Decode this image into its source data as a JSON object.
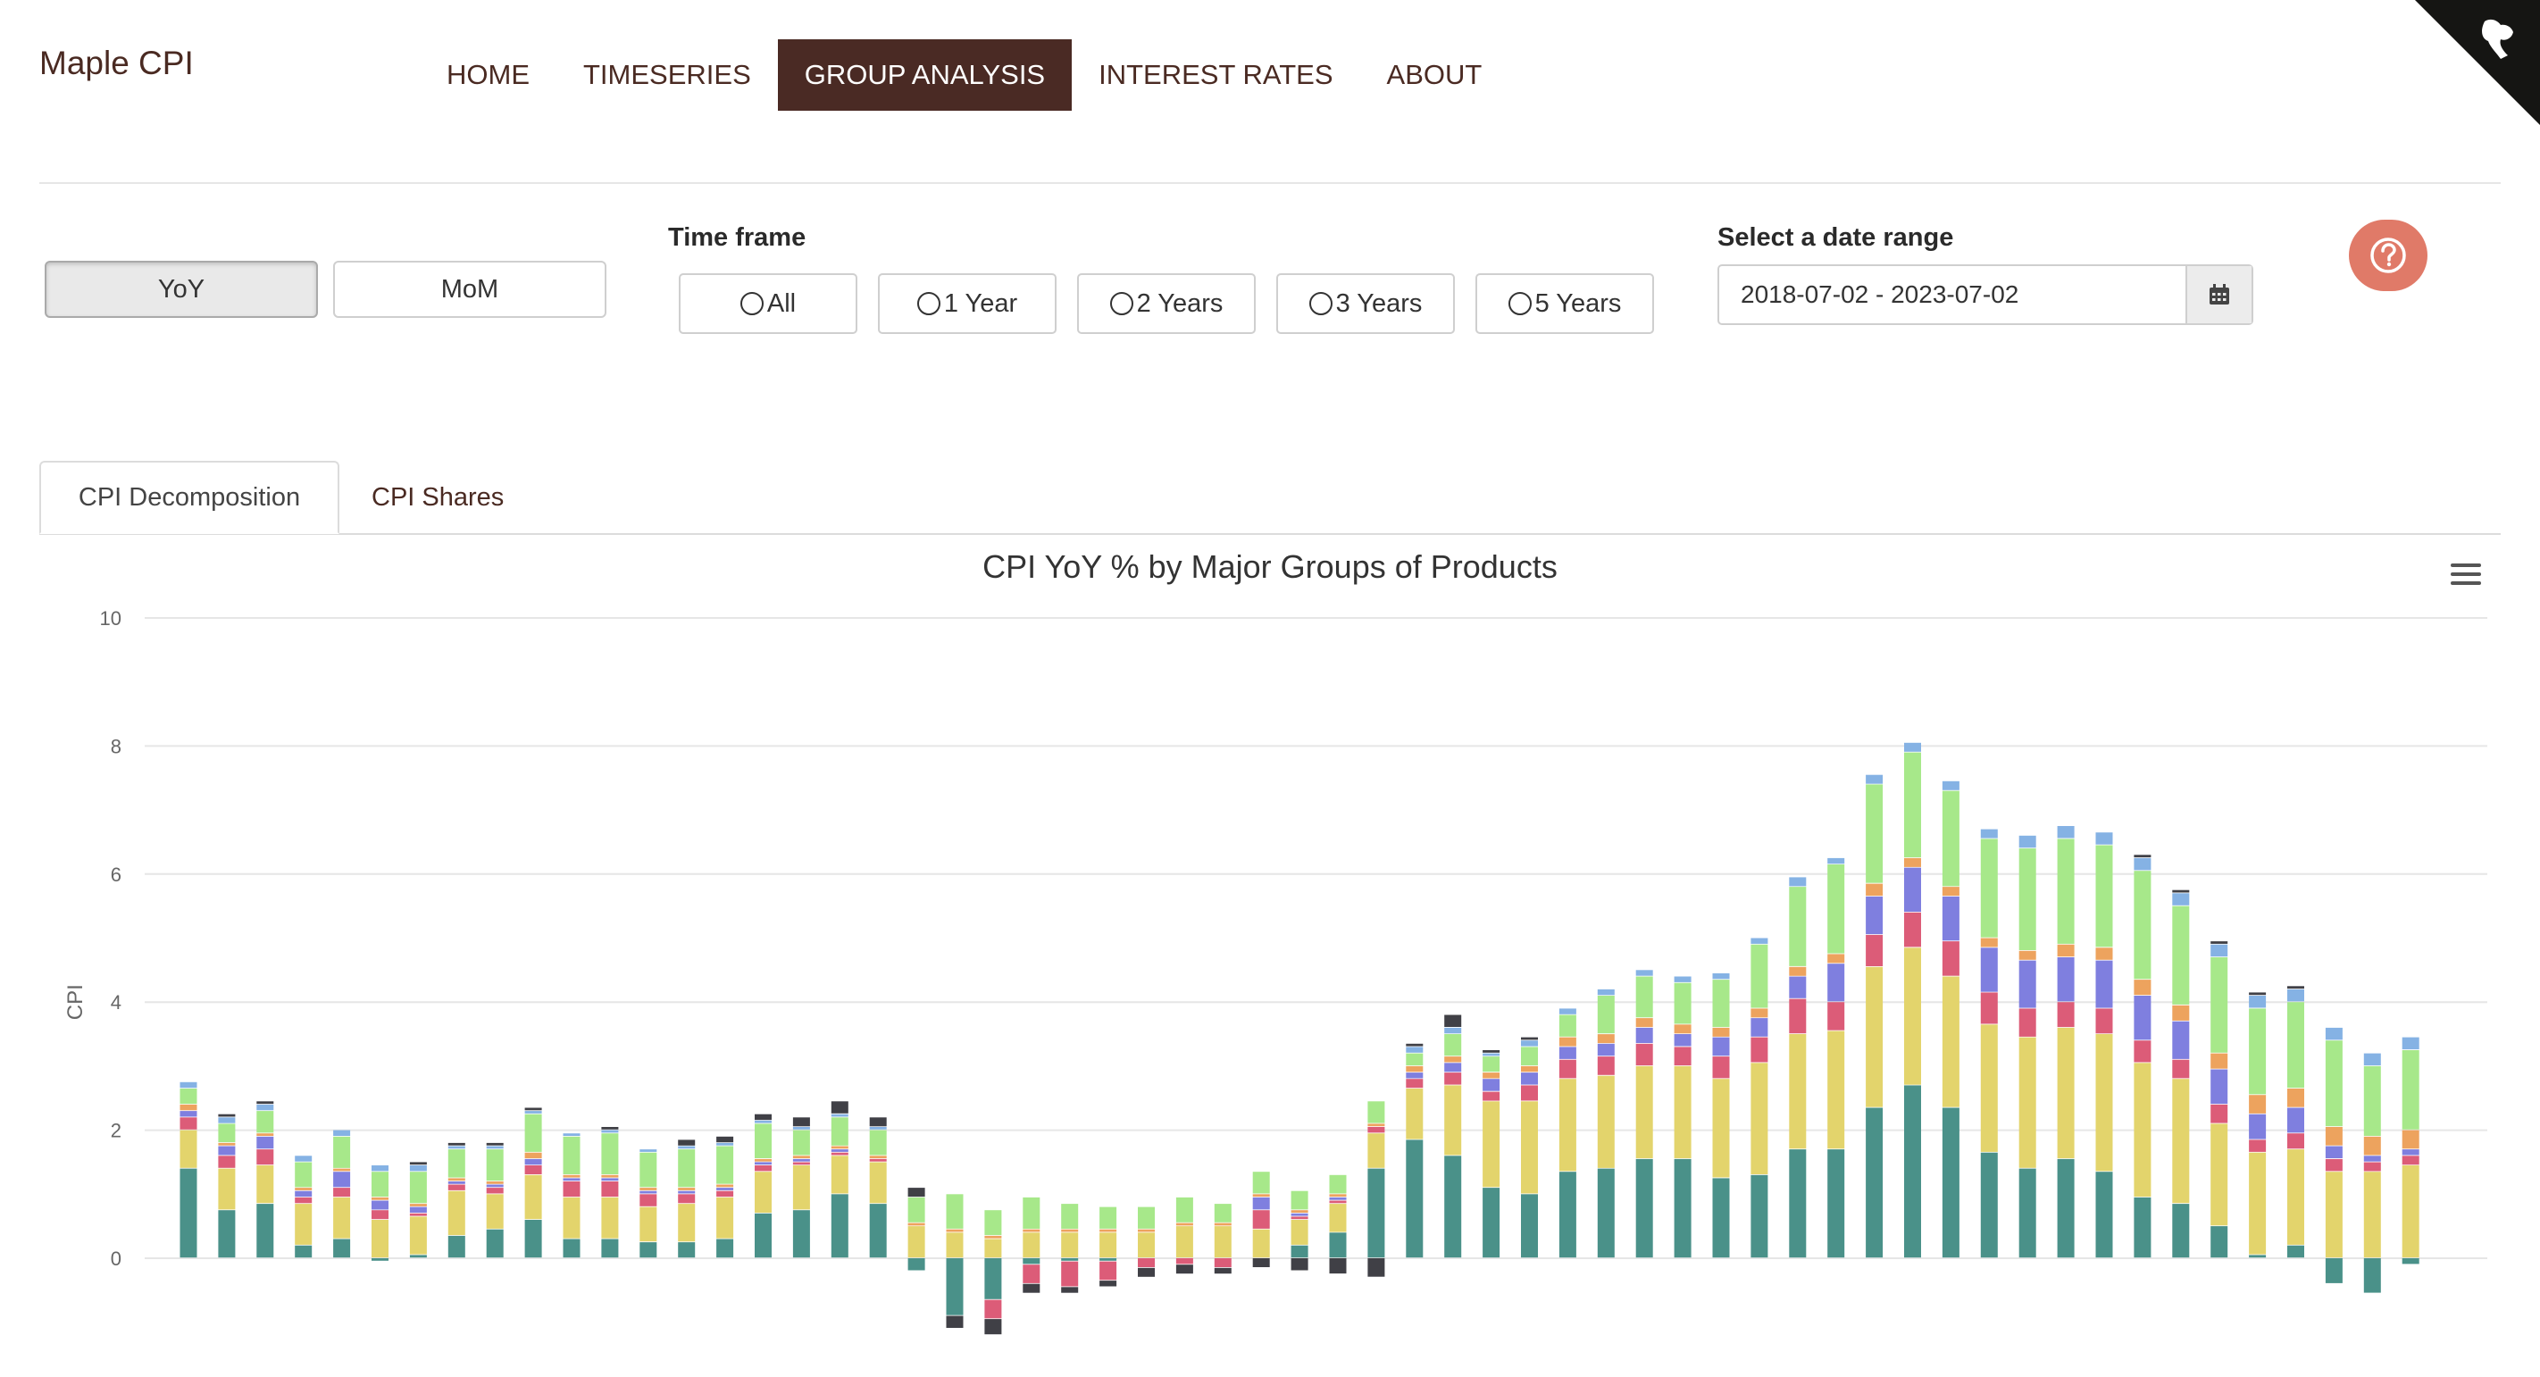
{
  "app": {
    "title": "Maple CPI"
  },
  "nav": {
    "items": [
      {
        "label": "HOME",
        "active": false
      },
      {
        "label": "TIMESERIES",
        "active": false
      },
      {
        "label": "GROUP ANALYSIS",
        "active": true
      },
      {
        "label": "INTEREST RATES",
        "active": false
      },
      {
        "label": "ABOUT",
        "active": false
      }
    ]
  },
  "mode": {
    "yoy_label": "YoY",
    "mom_label": "MoM",
    "selected": "YoY"
  },
  "timeframe": {
    "label": "Time frame",
    "options": [
      "All",
      "1 Year",
      "2 Years",
      "3 Years",
      "5 Years"
    ]
  },
  "daterange": {
    "label": "Select a date range",
    "value": "2018-07-02 - 2023-07-02"
  },
  "tabs": {
    "decomposition": "CPI Decomposition",
    "shares": "CPI Shares"
  },
  "colors": {
    "teal": "#4a9189",
    "yellow": "#e3d46c",
    "red": "#dc5c78",
    "purple": "#7f7fdf",
    "orange": "#eda35e",
    "green": "#a7e88a",
    "blue": "#85b2e4",
    "dark": "#404046",
    "help": "#e07a68",
    "nav_active": "#4a2a24"
  },
  "chart_data": {
    "type": "bar",
    "stacked": true,
    "title": "CPI YoY % by Major Groups of Products",
    "ylabel": "CPI",
    "xlabel": "",
    "ylim": [
      -1.2,
      10
    ],
    "yticks": [
      0,
      2,
      4,
      6,
      8,
      10
    ],
    "grid": true,
    "legend": "none",
    "series": [
      {
        "color": "#4a9189",
        "values": [
          1.4,
          0.75,
          0.85,
          0.2,
          0.3,
          -0.05,
          0.05,
          0.35,
          0.45,
          0.6,
          0.3,
          0.3,
          0.25,
          0.25,
          0.3,
          0.7,
          0.75,
          1.0,
          0.85,
          -0.2,
          -0.9,
          -0.65,
          -0.1,
          -0.05,
          -0.05,
          0,
          0,
          0,
          0,
          0.2,
          0.4,
          1.4,
          1.85,
          1.6,
          1.1,
          1.0,
          1.35,
          1.4,
          1.55,
          1.55,
          1.25,
          1.3,
          1.7,
          1.7,
          2.35,
          2.7,
          2.35,
          1.65,
          1.4,
          1.55,
          1.35,
          0.95,
          0.85,
          0.5,
          0.05,
          0.2,
          -0.4,
          -0.55,
          -0.1
        ]
      },
      {
        "color": "#e3d46c",
        "values": [
          0.6,
          0.65,
          0.6,
          0.65,
          0.65,
          0.6,
          0.6,
          0.7,
          0.55,
          0.7,
          0.65,
          0.65,
          0.55,
          0.6,
          0.65,
          0.65,
          0.7,
          0.6,
          0.65,
          0.5,
          0.4,
          0.3,
          0.4,
          0.4,
          0.4,
          0.4,
          0.5,
          0.5,
          0.45,
          0.4,
          0.45,
          0.55,
          0.8,
          1.1,
          1.35,
          1.45,
          1.45,
          1.45,
          1.45,
          1.45,
          1.55,
          1.75,
          1.8,
          1.85,
          2.2,
          2.15,
          2.05,
          2.0,
          2.05,
          2.05,
          2.15,
          2.1,
          1.95,
          1.6,
          1.6,
          1.5,
          1.35,
          1.35,
          1.45
        ]
      },
      {
        "color": "#dc5c78",
        "values": [
          0.2,
          0.2,
          0.25,
          0.1,
          0.15,
          0.15,
          0.05,
          0.1,
          0.1,
          0.15,
          0.25,
          0.25,
          0.2,
          0.15,
          0.1,
          0.1,
          0.05,
          0.05,
          0.05,
          0,
          0,
          -0.3,
          -0.3,
          -0.4,
          -0.3,
          -0.15,
          -0.1,
          -0.15,
          0.3,
          0.05,
          0.05,
          0.1,
          0.15,
          0.2,
          0.15,
          0.25,
          0.3,
          0.3,
          0.35,
          0.3,
          0.35,
          0.4,
          0.55,
          0.45,
          0.5,
          0.55,
          0.55,
          0.5,
          0.45,
          0.4,
          0.4,
          0.35,
          0.3,
          0.3,
          0.2,
          0.25,
          0.2,
          0.15,
          0.15
        ]
      },
      {
        "color": "#7f7fdf",
        "values": [
          0.1,
          0.15,
          0.2,
          0.1,
          0.25,
          0.15,
          0.1,
          0.05,
          0.05,
          0.1,
          0.05,
          0.05,
          0.05,
          0.05,
          0.05,
          0.05,
          0.05,
          0.05,
          0,
          0,
          0,
          0,
          0,
          0,
          0,
          0,
          0,
          0,
          0.2,
          0.05,
          0.05,
          0,
          0.1,
          0.15,
          0.2,
          0.2,
          0.2,
          0.2,
          0.25,
          0.2,
          0.3,
          0.3,
          0.35,
          0.6,
          0.6,
          0.7,
          0.7,
          0.7,
          0.75,
          0.7,
          0.75,
          0.7,
          0.6,
          0.55,
          0.4,
          0.4,
          0.2,
          0.1,
          0.1
        ]
      },
      {
        "color": "#eda35e",
        "values": [
          0.1,
          0.05,
          0.05,
          0.05,
          0.05,
          0.05,
          0.05,
          0.05,
          0.05,
          0.1,
          0.05,
          0.05,
          0.05,
          0.05,
          0.05,
          0.05,
          0.05,
          0.05,
          0.05,
          0.05,
          0.05,
          0.05,
          0.05,
          0.05,
          0.05,
          0.05,
          0.05,
          0.05,
          0.05,
          0.05,
          0.05,
          0.05,
          0.1,
          0.1,
          0.1,
          0.1,
          0.15,
          0.15,
          0.15,
          0.15,
          0.15,
          0.15,
          0.15,
          0.15,
          0.2,
          0.15,
          0.15,
          0.15,
          0.15,
          0.2,
          0.2,
          0.25,
          0.25,
          0.25,
          0.3,
          0.3,
          0.3,
          0.3,
          0.3
        ]
      },
      {
        "color": "#a7e88a",
        "values": [
          0.25,
          0.3,
          0.35,
          0.4,
          0.5,
          0.4,
          0.5,
          0.45,
          0.5,
          0.6,
          0.6,
          0.65,
          0.55,
          0.6,
          0.6,
          0.55,
          0.4,
          0.45,
          0.4,
          0.4,
          0.55,
          0.4,
          0.5,
          0.4,
          0.35,
          0.35,
          0.4,
          0.3,
          0.35,
          0.3,
          0.3,
          0.35,
          0.2,
          0.35,
          0.25,
          0.3,
          0.35,
          0.6,
          0.65,
          0.65,
          0.75,
          1.0,
          1.25,
          1.4,
          1.55,
          1.65,
          1.5,
          1.55,
          1.6,
          1.65,
          1.6,
          1.7,
          1.55,
          1.5,
          1.35,
          1.35,
          1.35,
          1.1,
          1.25
        ]
      },
      {
        "color": "#85b2e4",
        "values": [
          0.1,
          0.1,
          0.1,
          0.1,
          0.1,
          0.1,
          0.1,
          0.05,
          0.05,
          0.05,
          0.05,
          0.05,
          0.05,
          0.05,
          0.05,
          0.05,
          0.05,
          0.05,
          0.05,
          0,
          0,
          0,
          0,
          0,
          0,
          0,
          0,
          0,
          0,
          0,
          0,
          0,
          0.1,
          0.1,
          0.05,
          0.1,
          0.1,
          0.1,
          0.1,
          0.1,
          0.1,
          0.1,
          0.15,
          0.1,
          0.15,
          0.15,
          0.15,
          0.15,
          0.2,
          0.2,
          0.2,
          0.2,
          0.2,
          0.2,
          0.2,
          0.2,
          0.2,
          0.2,
          0.2
        ]
      },
      {
        "color": "#404046",
        "values": [
          0,
          0.05,
          0.05,
          0,
          0,
          0,
          0.05,
          0.05,
          0.05,
          0.05,
          0,
          0.05,
          0,
          0.1,
          0.1,
          0.1,
          0.15,
          0.2,
          0.15,
          0.15,
          -0.2,
          -0.25,
          -0.15,
          -0.1,
          -0.1,
          -0.15,
          -0.15,
          -0.1,
          -0.15,
          -0.2,
          -0.25,
          -0.3,
          0.05,
          0.2,
          0.05,
          0.05,
          0,
          0,
          0,
          0,
          0,
          0,
          0,
          0,
          0,
          0,
          0,
          0,
          0,
          0,
          0,
          0.05,
          0.05,
          0.05,
          0.05,
          0.05,
          0,
          0,
          0
        ]
      }
    ]
  }
}
